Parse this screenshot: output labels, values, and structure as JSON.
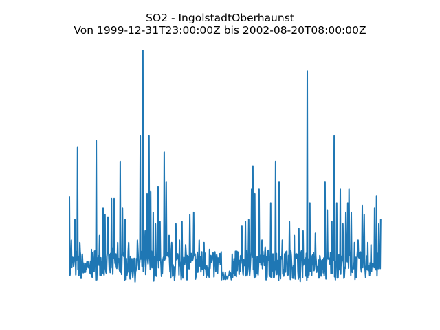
{
  "chart_data": {
    "type": "line",
    "title": "SO2 - IngolstadtOberhaunst",
    "subtitle": "Von 1999-12-31T23:00:00Z bis 2002-08-20T08:00:00Z",
    "xlabel": "",
    "ylabel": "",
    "axes_visible": false,
    "grid": false,
    "x_range": [
      "1999-12-31T23:00:00Z",
      "2002-08-20T08:00:00Z"
    ],
    "ylim": [
      0,
      100
    ],
    "line_color": "#1f77b4",
    "series": [
      {
        "x": [
          "2000-01-01",
          "2000-01-07",
          "2000-01-18",
          "2000-01-26",
          "2000-02-02",
          "2000-02-10",
          "2000-02-21",
          "2000-03-09",
          "2000-03-24",
          "2000-04-03",
          "2000-04-14",
          "2000-04-20",
          "2000-04-29",
          "2000-05-10",
          "2000-05-18",
          "2000-05-29",
          "2000-06-06",
          "2000-06-13",
          "2000-06-21",
          "2000-07-02",
          "2000-07-12",
          "2000-07-29",
          "2000-08-07",
          "2000-08-15",
          "2000-08-22",
          "2000-08-28",
          "2000-09-03",
          "2000-09-08",
          "2000-09-16",
          "2000-09-23",
          "2000-10-01",
          "2000-10-07",
          "2000-10-20",
          "2000-10-26",
          "2000-11-04",
          "2000-11-12",
          "2000-11-25",
          "2000-12-06",
          "2000-12-14",
          "2000-12-25",
          "2001-01-07",
          "2001-01-19",
          "2001-02-05",
          "2001-02-20",
          "2001-03-09",
          "2001-03-24",
          "2001-04-14",
          "2001-05-01",
          "2001-05-18",
          "2001-06-04",
          "2001-06-17",
          "2001-06-28",
          "2001-07-08",
          "2001-07-17",
          "2001-07-21",
          "2001-07-27",
          "2001-08-09",
          "2001-08-18",
          "2001-08-28",
          "2001-09-14",
          "2001-09-29",
          "2001-10-10",
          "2001-10-20",
          "2001-10-31",
          "2001-11-11",
          "2001-11-26",
          "2001-12-10",
          "2001-12-23",
          "2002-01-05",
          "2002-01-13",
          "2002-01-30",
          "2002-02-14",
          "2002-03-01",
          "2002-03-08",
          "2002-03-22",
          "2002-03-29",
          "2002-04-06",
          "2002-04-17",
          "2002-04-25",
          "2002-05-04",
          "2002-05-10",
          "2002-05-14",
          "2002-05-21",
          "2002-05-31",
          "2002-06-11",
          "2002-06-24",
          "2002-06-30",
          "2002-07-11",
          "2002-07-21",
          "2002-08-01",
          "2002-08-07",
          "2002-08-14",
          "2002-08-20"
        ],
        "values": [
          37,
          18,
          27,
          58,
          17,
          12,
          8,
          14,
          61,
          20,
          32,
          29,
          28,
          36,
          36,
          17,
          52,
          32,
          27,
          17,
          10,
          18,
          63,
          100,
          22,
          38,
          63,
          39,
          30,
          25,
          41,
          26,
          56,
          43,
          20,
          17,
          25,
          18,
          26,
          16,
          29,
          30,
          18,
          17,
          14,
          12,
          13,
          2,
          12,
          13,
          24,
          26,
          27,
          40,
          50,
          38,
          40,
          18,
          15,
          34,
          52,
          43,
          18,
          13,
          26,
          20,
          23,
          22,
          91,
          34,
          21,
          10,
          43,
          31,
          26,
          63,
          34,
          40,
          25,
          30,
          34,
          40,
          30,
          17,
          18,
          33,
          29,
          17,
          16,
          32,
          37,
          25,
          27
        ]
      }
    ]
  }
}
